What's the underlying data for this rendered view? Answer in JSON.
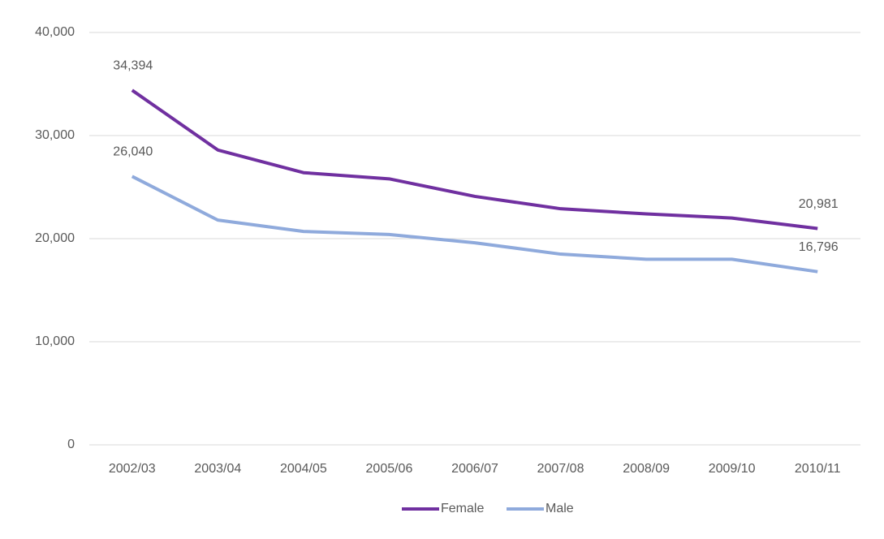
{
  "chart_data": {
    "type": "line",
    "categories": [
      "2002/03",
      "2003/04",
      "2004/05",
      "2005/06",
      "2006/07",
      "2007/08",
      "2008/09",
      "2009/10",
      "2010/11"
    ],
    "series": [
      {
        "name": "Female",
        "color": "#7030a0",
        "values": [
          34394,
          28600,
          26400,
          25800,
          24100,
          22900,
          22400,
          22000,
          20981
        ],
        "value_labels": [
          "34,394",
          null,
          null,
          null,
          null,
          null,
          null,
          null,
          "20,981"
        ]
      },
      {
        "name": "Male",
        "color": "#8faadc",
        "values": [
          26040,
          21800,
          20700,
          20400,
          19600,
          18500,
          18000,
          18000,
          16796
        ],
        "value_labels": [
          "26,040",
          null,
          null,
          null,
          null,
          null,
          null,
          null,
          "16,796"
        ]
      }
    ],
    "ylim": [
      0,
      40000
    ],
    "yticks": [
      0,
      {
        "value": 10000,
        "label": "10,000"
      },
      {
        "value": 20000,
        "label": "20,000"
      },
      {
        "value": 30000,
        "label": "30,000"
      },
      {
        "value": 40000,
        "label": "40,000"
      }
    ],
    "grid": true,
    "legend": "bottom"
  }
}
